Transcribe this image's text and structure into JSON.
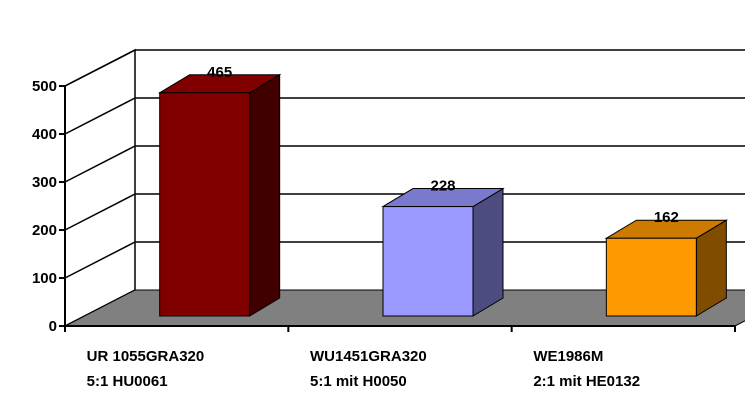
{
  "chart_data": {
    "type": "bar",
    "style": "3d-column",
    "categories": [
      [
        "UR 1055GRA320",
        "5:1 HU0061"
      ],
      [
        "WU1451GRA320",
        "5:1 mit H0050"
      ],
      [
        "WE1986M",
        "2:1 mit HE0132"
      ]
    ],
    "values": [
      465,
      228,
      162
    ],
    "data_labels": [
      "465",
      "228",
      "162"
    ],
    "bar_colors": [
      "#800000",
      "#9999ff",
      "#ff9900"
    ],
    "bar_side_colors": [
      "#400000",
      "#4c4c80",
      "#804c00"
    ],
    "bar_top_colors": [
      "#800000",
      "#7a7acc",
      "#cc7a00"
    ],
    "floor_color": "#808080",
    "ylim": [
      0,
      500
    ],
    "yticks": [
      0,
      100,
      200,
      300,
      400,
      500
    ],
    "ytick_labels": [
      "0",
      "100",
      "200",
      "300",
      "400",
      "500"
    ],
    "grid": true,
    "legend": "none",
    "title": "",
    "xlabel": "",
    "ylabel": ""
  }
}
